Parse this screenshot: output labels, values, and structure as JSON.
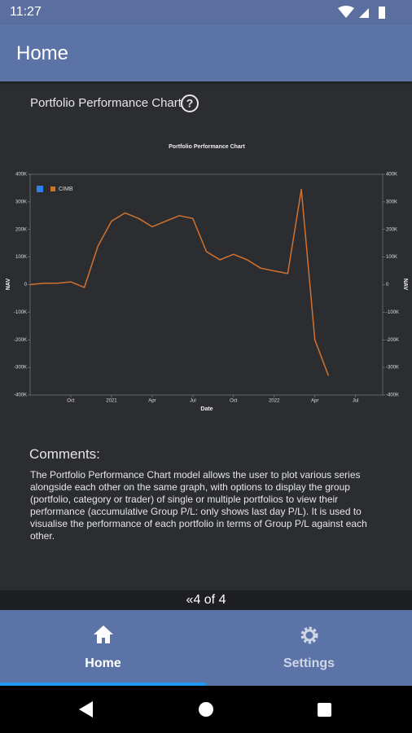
{
  "status_bar": {
    "time": "11:27"
  },
  "app_bar": {
    "title": "Home"
  },
  "card": {
    "title": "Portfolio Performance Chart"
  },
  "chart_data": {
    "type": "line",
    "title": "Portfolio Performance Chart",
    "x_label": "Date",
    "y_label": "NAV",
    "y2_label": "NAV",
    "x": [
      "2020-07",
      "2020-08",
      "2020-09",
      "2020-10",
      "2020-11",
      "2020-12",
      "2021-01",
      "2021-02",
      "2021-03",
      "2021-04",
      "2021-05",
      "2021-06",
      "2021-07",
      "2021-08",
      "2021-09",
      "2021-10",
      "2021-11",
      "2021-12",
      "2022-01",
      "2022-02",
      "2022-03",
      "2022-04",
      "2022-05"
    ],
    "series": [
      {
        "name": "CIMB",
        "color": "#d2722e",
        "values": [
          0,
          5000,
          5000,
          10000,
          -10000,
          140000,
          230000,
          260000,
          240000,
          210000,
          230000,
          250000,
          240000,
          120000,
          90000,
          110000,
          90000,
          60000,
          50000,
          40000,
          345000,
          -200000,
          -330000
        ]
      }
    ],
    "xlim": [
      "2020-07",
      "2022-09"
    ],
    "xticks": [
      {
        "value": "2020-10",
        "label": "Oct"
      },
      {
        "value": "2021-01",
        "label": "2021"
      },
      {
        "value": "2021-04",
        "label": "Apr"
      },
      {
        "value": "2021-07",
        "label": "Jul"
      },
      {
        "value": "2021-10",
        "label": "Oct"
      },
      {
        "value": "2022-01",
        "label": "2022"
      },
      {
        "value": "2022-04",
        "label": "Apr"
      },
      {
        "value": "2022-07",
        "label": "Jul"
      }
    ],
    "ylim": [
      -400000,
      400000
    ],
    "yticks": [
      {
        "value": 400000,
        "label": "400K"
      },
      {
        "value": 300000,
        "label": "300K"
      },
      {
        "value": 200000,
        "label": "200K"
      },
      {
        "value": 100000,
        "label": "100K"
      },
      0,
      {
        "value": -100000,
        "label": "-100K"
      },
      {
        "value": -200000,
        "label": "-200K"
      },
      {
        "value": -300000,
        "label": "-300K"
      },
      {
        "value": -400000,
        "label": "-400K"
      }
    ],
    "y2lim": [
      -400000,
      400000
    ],
    "y2ticks": [
      {
        "value": 400000,
        "label": "400K"
      },
      {
        "value": 300000,
        "label": "300K"
      },
      {
        "value": 200000,
        "label": "200K"
      },
      {
        "value": 100000,
        "label": "100K"
      },
      0,
      {
        "value": -100000,
        "label": "-100K"
      },
      {
        "value": -200000,
        "label": "-200K"
      },
      {
        "value": -300000,
        "label": "-300K"
      },
      {
        "value": -400000,
        "label": "-400K"
      }
    ],
    "legend": "top-left"
  },
  "comments": {
    "heading": "Comments:",
    "body": "The Portfolio Performance Chart model allows the user to plot various series alongside each other on the same graph, with options to display the group (portfolio, category or trader) of single or multiple portfolios to view their performance (accumulative Group P/L: only shows last day P/L). It is used to visualise the performance of each portfolio in terms of Group P/L against each other."
  },
  "pager": {
    "label": "4 of 4"
  },
  "bottom_nav": {
    "items": [
      "Home",
      "Settings"
    ]
  }
}
